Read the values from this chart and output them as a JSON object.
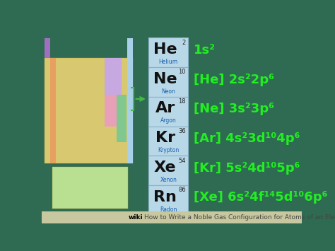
{
  "background_color": "#2e6b52",
  "title_bold": "wiki",
  "title_rest": "How to Write a Noble Gas Configuration for Atoms of an Element",
  "title_bar_color": "#c8c8a0",
  "box_color": "#b8d8e8",
  "box_border_color": "#8ab0c8",
  "elements": [
    {
      "symbol": "He",
      "name": "Helium",
      "number": "2",
      "config_parts": [
        [
          "1s",
          false
        ],
        [
          "²",
          true
        ]
      ]
    },
    {
      "symbol": "Ne",
      "name": "Neon",
      "number": "10",
      "config_parts": [
        [
          "[He] 2s",
          false
        ],
        [
          "²",
          true
        ],
        [
          "2p",
          false
        ],
        [
          "⁶",
          true
        ]
      ]
    },
    {
      "symbol": "Ar",
      "name": "Argon",
      "number": "18",
      "config_parts": [
        [
          "[Ne] 3s",
          false
        ],
        [
          "²",
          true
        ],
        [
          "3p",
          false
        ],
        [
          "⁶",
          true
        ]
      ]
    },
    {
      "symbol": "Kr",
      "name": "Krypton",
      "number": "36",
      "config_parts": [
        [
          "[Ar] 4s",
          false
        ],
        [
          "²",
          true
        ],
        [
          "3d",
          false
        ],
        [
          "¹⁰",
          true
        ],
        [
          "4p",
          false
        ],
        [
          "⁶",
          true
        ]
      ]
    },
    {
      "symbol": "Xe",
      "name": "Xenon",
      "number": "54",
      "config_parts": [
        [
          "[Kr] 5s",
          false
        ],
        [
          "²",
          true
        ],
        [
          "4d",
          false
        ],
        [
          "¹⁰",
          true
        ],
        [
          "5p",
          false
        ],
        [
          "⁶",
          true
        ]
      ]
    },
    {
      "symbol": "Rn",
      "name": "Radon",
      "number": "86",
      "config_parts": [
        [
          "[Xe] 6s",
          false
        ],
        [
          "²",
          true
        ],
        [
          "4f",
          false
        ],
        [
          "¹⁴",
          true
        ],
        [
          "5d",
          false
        ],
        [
          "¹⁰",
          true
        ],
        [
          "6p",
          false
        ],
        [
          "⁶",
          true
        ]
      ]
    }
  ],
  "element_text_color": "#22ee22",
  "symbol_color": "#111111",
  "name_color": "#1a5fb0",
  "number_color": "#222222",
  "pt_colors": {
    "main_body": "#d8c870",
    "main_border": "#b8a840",
    "noble_gas_col": "#a8d0e8",
    "purple": "#a070c0",
    "orange": "#e8a060",
    "pink": "#e8a0b8",
    "teal": "#80c890",
    "lavender": "#c8a8e0",
    "green_lt": "#a8e0a0",
    "lanthanide": "#b8e090"
  }
}
